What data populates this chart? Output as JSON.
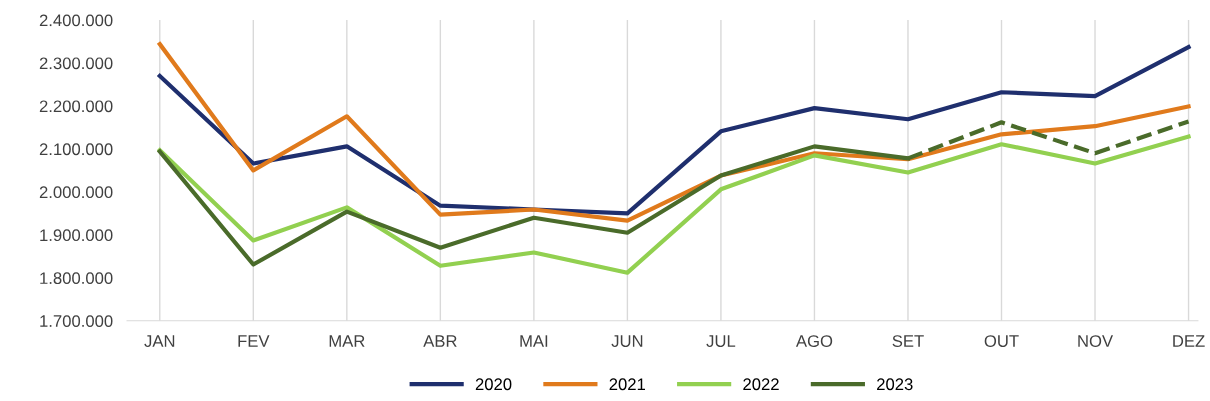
{
  "chart_data": {
    "type": "line",
    "categories": [
      "JAN",
      "FEV",
      "MAR",
      "ABR",
      "MAI",
      "JUN",
      "JUL",
      "AGO",
      "SET",
      "OUT",
      "NOV",
      "DEZ"
    ],
    "series": [
      {
        "name": "2020",
        "color": "#1f2f6e",
        "values": [
          2270000,
          2066000,
          2106000,
          1968000,
          1959000,
          1950000,
          2141000,
          2195000,
          2169000,
          2232000,
          2223000,
          2337000
        ]
      },
      {
        "name": "2021",
        "color": "#e07a1c",
        "values": [
          2344000,
          2050000,
          2176000,
          1947000,
          1959000,
          1933000,
          2038000,
          2090000,
          2076000,
          2134000,
          2153000,
          2199000
        ]
      },
      {
        "name": "2022",
        "color": "#92d050",
        "values": [
          2097000,
          1887000,
          1964000,
          1828000,
          1859000,
          1812000,
          2006000,
          2085000,
          2045000,
          2111000,
          2066000,
          2129000
        ]
      },
      {
        "name": "2023",
        "color": "#4a6b2a",
        "values": [
          2094000,
          1831000,
          1954000,
          1870000,
          1940000,
          1905000,
          2038000,
          2106000,
          2078000,
          null,
          null,
          null
        ]
      },
      {
        "color": "#4a6b2a",
        "line_style": "dashed",
        "values": [
          null,
          null,
          null,
          null,
          null,
          null,
          null,
          null,
          2078000,
          2162000,
          2090000,
          2164000
        ]
      }
    ],
    "ylim": [
      1700000,
      2400000
    ],
    "yticks": [
      {
        "value": 1700000,
        "label": "1.700.000"
      },
      {
        "value": 1800000,
        "label": "1.800.000"
      },
      {
        "value": 1900000,
        "label": "1.900.000"
      },
      {
        "value": 2000000,
        "label": "2.000.000"
      },
      {
        "value": 2100000,
        "label": "2.100.000"
      },
      {
        "value": 2200000,
        "label": "2.200.000"
      },
      {
        "value": 2300000,
        "label": "2.300.000"
      },
      {
        "value": 2400000,
        "label": "2.400.000"
      }
    ],
    "grid": "x",
    "legend": "bottom",
    "marker": "none",
    "line_style": "solid"
  }
}
